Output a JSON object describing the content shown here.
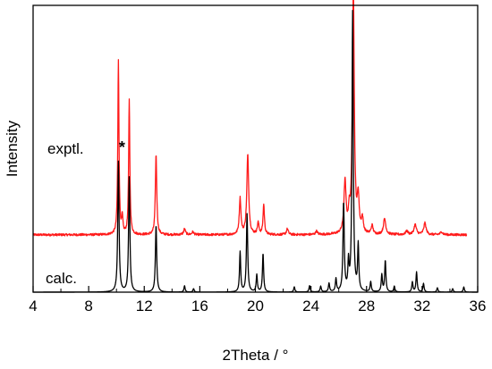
{
  "chart_data": {
    "type": "line",
    "xlabel": "2Theta / °",
    "ylabel": "Intensity",
    "xlim": [
      4,
      36
    ],
    "x_ticks": [
      4,
      8,
      12,
      16,
      20,
      24,
      28,
      32,
      36
    ],
    "x_tick_labels": [
      "4",
      "8",
      "12",
      "16",
      "20",
      "24",
      "28",
      "32",
      "36"
    ],
    "y_ticks_shown": false,
    "grid": false,
    "annotation": "*",
    "annotation_x": 10.4,
    "series": [
      {
        "name": "exptl.",
        "color": "#ff1a1a",
        "baseline": 0.2,
        "peak_scale": 1.0,
        "noise": 0.004,
        "x_start": 4,
        "x_end": 35.2,
        "peaks": [
          {
            "x": 10.14,
            "h": 0.605,
            "w": 0.05
          },
          {
            "x": 10.42,
            "h": 0.055,
            "w": 0.05
          },
          {
            "x": 10.92,
            "h": 0.468,
            "w": 0.05
          },
          {
            "x": 12.85,
            "h": 0.28,
            "w": 0.06
          },
          {
            "x": 14.9,
            "h": 0.02,
            "w": 0.08
          },
          {
            "x": 15.5,
            "h": 0.01,
            "w": 0.08
          },
          {
            "x": 18.9,
            "h": 0.125,
            "w": 0.07
          },
          {
            "x": 19.45,
            "h": 0.278,
            "w": 0.08
          },
          {
            "x": 20.2,
            "h": 0.04,
            "w": 0.07
          },
          {
            "x": 20.6,
            "h": 0.105,
            "w": 0.06
          },
          {
            "x": 22.3,
            "h": 0.02,
            "w": 0.08
          },
          {
            "x": 24.4,
            "h": 0.012,
            "w": 0.08
          },
          {
            "x": 26.45,
            "h": 0.18,
            "w": 0.09
          },
          {
            "x": 26.75,
            "h": 0.06,
            "w": 0.07
          },
          {
            "x": 27.05,
            "h": 0.855,
            "w": 0.08
          },
          {
            "x": 27.4,
            "h": 0.12,
            "w": 0.08
          },
          {
            "x": 27.7,
            "h": 0.05,
            "w": 0.08
          },
          {
            "x": 28.4,
            "h": 0.03,
            "w": 0.08
          },
          {
            "x": 29.3,
            "h": 0.055,
            "w": 0.1
          },
          {
            "x": 30.9,
            "h": 0.012,
            "w": 0.1
          },
          {
            "x": 31.5,
            "h": 0.035,
            "w": 0.1
          },
          {
            "x": 32.2,
            "h": 0.04,
            "w": 0.1
          },
          {
            "x": 33.4,
            "h": 0.01,
            "w": 0.1
          }
        ]
      },
      {
        "name": "calc.",
        "color": "#000000",
        "baseline": 0.0,
        "peak_scale": 1.0,
        "noise": 0,
        "x_start": 4,
        "x_end": 36,
        "peaks": [
          {
            "x": 10.14,
            "h": 0.455,
            "w": 0.055
          },
          {
            "x": 10.92,
            "h": 0.4,
            "w": 0.055
          },
          {
            "x": 12.85,
            "h": 0.235,
            "w": 0.055
          },
          {
            "x": 14.9,
            "h": 0.022,
            "w": 0.05
          },
          {
            "x": 15.55,
            "h": 0.012,
            "w": 0.05
          },
          {
            "x": 18.9,
            "h": 0.14,
            "w": 0.05
          },
          {
            "x": 19.4,
            "h": 0.272,
            "w": 0.055
          },
          {
            "x": 20.1,
            "h": 0.06,
            "w": 0.05
          },
          {
            "x": 20.55,
            "h": 0.135,
            "w": 0.05
          },
          {
            "x": 22.8,
            "h": 0.018,
            "w": 0.05
          },
          {
            "x": 23.9,
            "h": 0.022,
            "w": 0.05
          },
          {
            "x": 24.7,
            "h": 0.02,
            "w": 0.05
          },
          {
            "x": 25.3,
            "h": 0.03,
            "w": 0.05
          },
          {
            "x": 25.8,
            "h": 0.045,
            "w": 0.05
          },
          {
            "x": 26.35,
            "h": 0.31,
            "w": 0.055
          },
          {
            "x": 26.7,
            "h": 0.095,
            "w": 0.05
          },
          {
            "x": 27.0,
            "h": 0.975,
            "w": 0.055
          },
          {
            "x": 27.4,
            "h": 0.16,
            "w": 0.05
          },
          {
            "x": 28.3,
            "h": 0.035,
            "w": 0.05
          },
          {
            "x": 29.1,
            "h": 0.06,
            "w": 0.05
          },
          {
            "x": 29.35,
            "h": 0.11,
            "w": 0.05
          },
          {
            "x": 30.0,
            "h": 0.02,
            "w": 0.05
          },
          {
            "x": 31.3,
            "h": 0.035,
            "w": 0.05
          },
          {
            "x": 31.6,
            "h": 0.07,
            "w": 0.05
          },
          {
            "x": 32.1,
            "h": 0.03,
            "w": 0.05
          },
          {
            "x": 33.1,
            "h": 0.015,
            "w": 0.05
          },
          {
            "x": 34.2,
            "h": 0.012,
            "w": 0.05
          },
          {
            "x": 35.0,
            "h": 0.018,
            "w": 0.05
          }
        ]
      }
    ]
  }
}
